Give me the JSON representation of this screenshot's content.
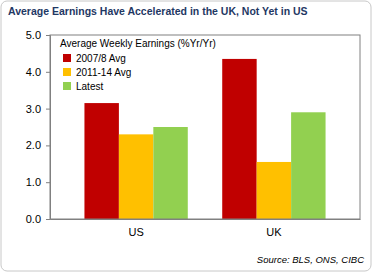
{
  "chart_data": {
    "type": "bar",
    "title": "Average Earnings Have Accelerated in the UK, Not Yet in US",
    "legend_title": "Average Weekly Earnings (%Yr/Yr)",
    "source": "Source: BLS, ONS, CIBC",
    "categories": [
      "US",
      "UK"
    ],
    "series": [
      {
        "name": "2007/8 Avg",
        "color": "#C00000",
        "values": [
          3.15,
          4.35
        ]
      },
      {
        "name": "2011-14 Avg",
        "color": "#FFC000",
        "values": [
          2.3,
          1.55
        ]
      },
      {
        "name": "Latest",
        "color": "#92D050",
        "values": [
          2.5,
          2.9
        ]
      }
    ],
    "ylim": [
      0,
      5
    ],
    "yticks": [
      {
        "value": 0,
        "label": "0.0"
      },
      {
        "value": 1,
        "label": "1.0"
      },
      {
        "value": 2,
        "label": "2.0"
      },
      {
        "value": 3,
        "label": "3.0"
      },
      {
        "value": 4,
        "label": "4.0"
      },
      {
        "value": 5,
        "label": "5.0"
      }
    ],
    "grid": false,
    "legend": "top-left"
  }
}
